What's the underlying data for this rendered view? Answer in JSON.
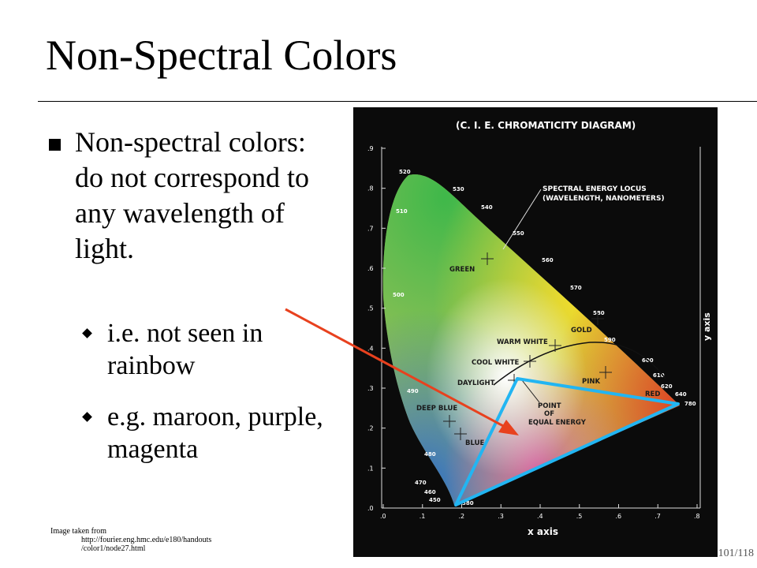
{
  "slide": {
    "title": "Non-Spectral Colors",
    "bullet": "Non-spectral colors: do not correspond to any wavelength of light.",
    "sub_bullets": [
      "i.e. not seen in rainbow",
      "e.g. maroon, purple, magenta"
    ],
    "credit_label": "Image taken from",
    "credit_url_line1": "http://fourier.eng.hmc.edu/e180/handouts",
    "credit_url_line2": "/color1/node27.html",
    "page_number": "101/118"
  },
  "diagram": {
    "title": "(C. I. E. CHROMATICITY DIAGRAM)",
    "locus_label_1": "SPECTRAL ENERGY LOCUS",
    "locus_label_2": "(WAVELENGTH, NANOMETERS)",
    "x_axis_label": "x axis",
    "y_axis_label": "y axis",
    "x_ticks": [
      ".0",
      ".1",
      ".2",
      ".3",
      ".4",
      ".5",
      ".6",
      ".7",
      ".8"
    ],
    "y_ticks": [
      ".9",
      ".8",
      ".7",
      ".6",
      ".5",
      ".4",
      ".3",
      ".2",
      ".1",
      ".0"
    ],
    "wavelengths": [
      "520",
      "530",
      "540",
      "550",
      "560",
      "570",
      "580",
      "590",
      "600",
      "610",
      "620",
      "640",
      "780",
      "510",
      "500",
      "490",
      "480",
      "470",
      "460",
      "450",
      "380"
    ],
    "regions": {
      "green": "GREEN",
      "gold": "GOLD",
      "warm_white": "WARM WHITE",
      "cool_white": "COOL WHITE",
      "daylight": "DAYLIGHT",
      "pink": "PINK",
      "red": "RED",
      "deep_blue": "DEEP BLUE",
      "blue": "BLUE",
      "point_1": "POINT",
      "point_2": "OF",
      "point_3": "EQUAL ENERGY"
    },
    "colors": {
      "background": "#0b0b0b",
      "triangle": "#22b5f2",
      "arrow": "#e8411e"
    }
  }
}
